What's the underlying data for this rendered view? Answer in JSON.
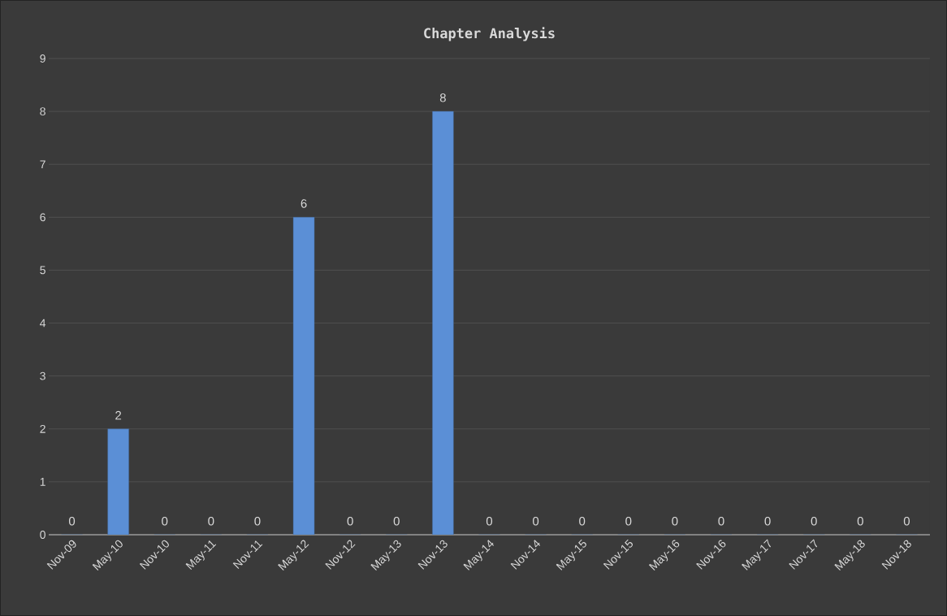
{
  "chart_data": {
    "type": "bar",
    "title": "Chapter Analysis",
    "categories": [
      "Nov-09",
      "May-10",
      "Nov-10",
      "May-11",
      "Nov-11",
      "May-12",
      "Nov-12",
      "May-13",
      "Nov-13",
      "May-14",
      "Nov-14",
      "May-15",
      "Nov-15",
      "May-16",
      "Nov-16",
      "May-17",
      "Nov-17",
      "May-18",
      "Nov-18"
    ],
    "values": [
      0,
      2,
      0,
      0,
      0,
      6,
      0,
      0,
      8,
      0,
      0,
      0,
      0,
      0,
      0,
      0,
      0,
      0,
      0
    ],
    "color": "#5b8fd6",
    "ylim": [
      0,
      9
    ],
    "yticks": [
      0,
      1,
      2,
      3,
      4,
      5,
      6,
      7,
      8,
      9
    ],
    "grid": "y",
    "data_labels": true
  }
}
